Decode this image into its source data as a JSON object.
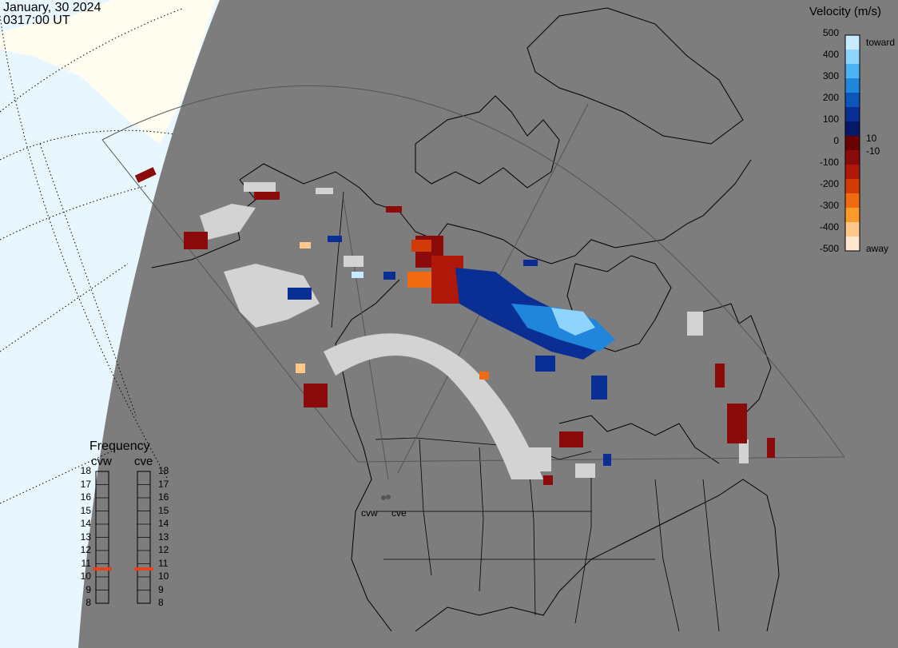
{
  "header": {
    "date": "January, 30 2024",
    "time": "0317:00 UT"
  },
  "colorbar": {
    "title": "Velocity (m/s)",
    "ticks": [
      "500",
      "400",
      "300",
      "200",
      "100",
      "0",
      "-100",
      "-200",
      "-300",
      "-400",
      "-500"
    ],
    "small_ticks": [
      "10",
      "-10"
    ],
    "toward_label": "toward",
    "away_label": "away",
    "colors": [
      "#c8ecff",
      "#8fd3ff",
      "#4cb4f2",
      "#1f86dc",
      "#0d55b8",
      "#0a2f94",
      "#051a66",
      "#6b0000",
      "#8b0b0b",
      "#b0180a",
      "#d23a08",
      "#ef6a10",
      "#ff9a2a",
      "#ffc88a",
      "#ffe6cc"
    ]
  },
  "frequency": {
    "title": "Frequency",
    "radars": [
      "cvw",
      "cve"
    ],
    "levels": [
      "18",
      "17",
      "16",
      "15",
      "14",
      "13",
      "12",
      "11",
      "10",
      "9",
      "8"
    ],
    "selected_mhz": [
      10.6,
      10.6
    ],
    "marker_color": "#e8431c"
  },
  "sites": [
    "cvw",
    "cve"
  ],
  "map_colors": {
    "ocean": "#e8f6ff",
    "land": "#fffdf0",
    "shade": "#7d7d7d",
    "gs": "#d3d3d3"
  }
}
